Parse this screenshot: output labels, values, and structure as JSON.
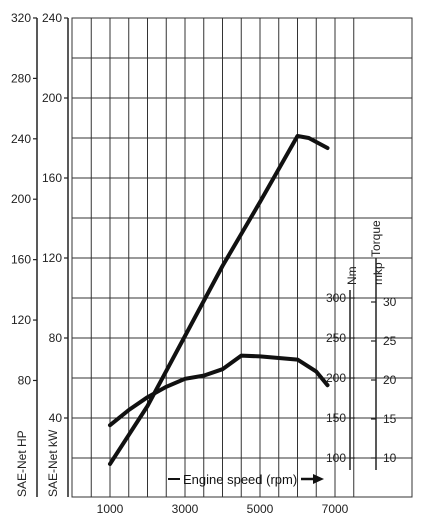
{
  "chart_data": {
    "type": "line",
    "xlabel": "Engine speed (rpm)",
    "x_ticks": [
      1000,
      3000,
      5000,
      7000
    ],
    "x_range": [
      500,
      7500
    ],
    "axes": {
      "hp": {
        "label": "SAE-Net HP",
        "ticks": [
          80,
          120,
          160,
          200,
          240,
          280,
          320
        ]
      },
      "kw": {
        "label": "SAE-Net kW",
        "ticks": [
          40,
          80,
          120,
          160,
          200,
          240
        ]
      },
      "nm": {
        "label": "Nm",
        "ticks": [
          100,
          150,
          200,
          250,
          300
        ]
      },
      "mkp": {
        "label": "mkp",
        "ticks": [
          10,
          15,
          20,
          25,
          30
        ]
      },
      "torque_label": "Torque"
    },
    "grid": true,
    "series": [
      {
        "axis": "kW",
        "values": [
          {
            "x": 1000,
            "y": 17
          },
          {
            "x": 2000,
            "y": 46
          },
          {
            "x": 3000,
            "y": 81
          },
          {
            "x": 4000,
            "y": 116
          },
          {
            "x": 5000,
            "y": 148
          },
          {
            "x": 6000,
            "y": 181
          },
          {
            "x": 6300,
            "y": 180
          },
          {
            "x": 6800,
            "y": 175
          }
        ]
      },
      {
        "axis": "Nm",
        "values": [
          {
            "x": 1000,
            "y": 141
          },
          {
            "x": 1500,
            "y": 160
          },
          {
            "x": 2000,
            "y": 176
          },
          {
            "x": 2500,
            "y": 189
          },
          {
            "x": 3000,
            "y": 199
          },
          {
            "x": 3500,
            "y": 203
          },
          {
            "x": 4000,
            "y": 211
          },
          {
            "x": 4500,
            "y": 228
          },
          {
            "x": 5000,
            "y": 227
          },
          {
            "x": 6000,
            "y": 223
          },
          {
            "x": 6500,
            "y": 208
          },
          {
            "x": 6800,
            "y": 191
          }
        ]
      }
    ]
  }
}
